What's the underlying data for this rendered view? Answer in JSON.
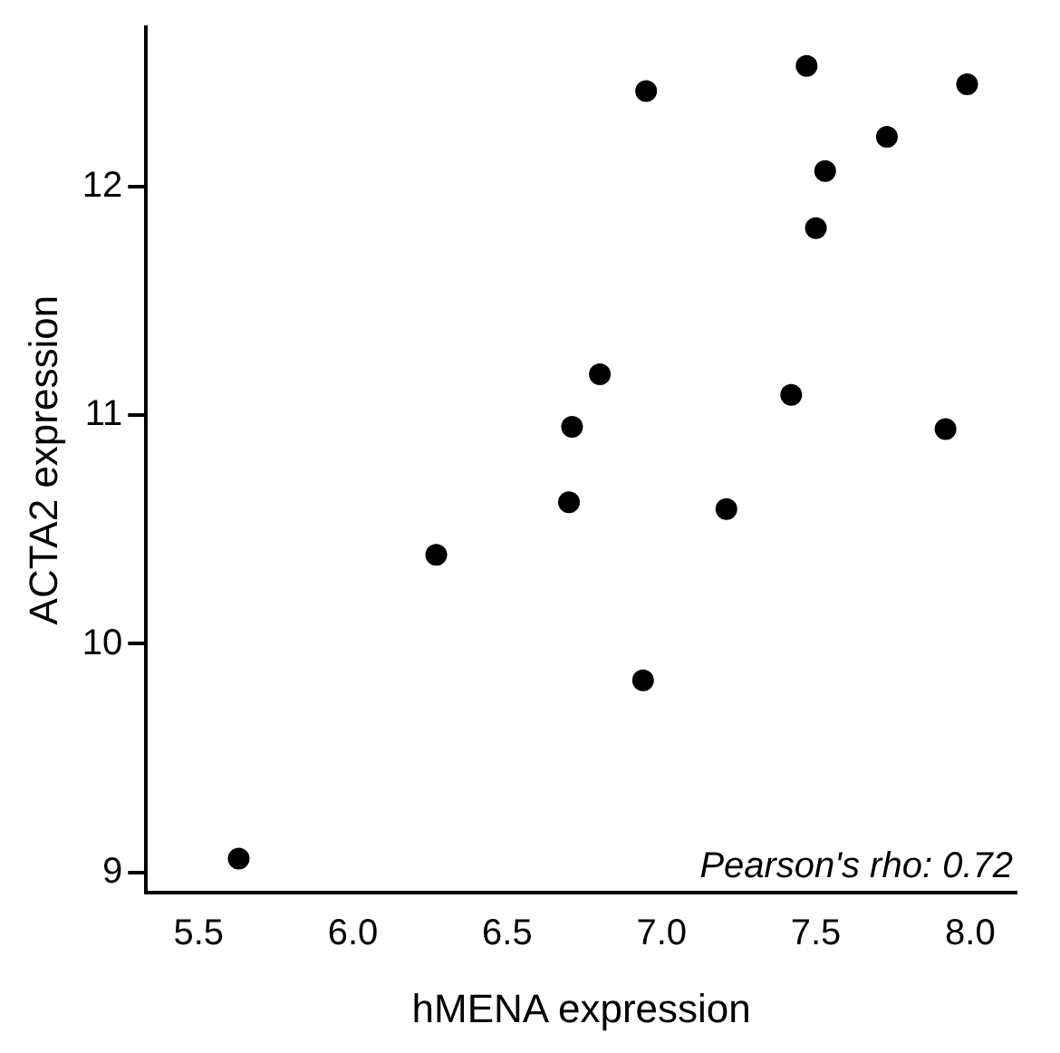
{
  "chart_data": {
    "type": "scatter",
    "xlabel": "hMENA expression",
    "ylabel": "ACTA2 expression",
    "annotations": [
      "Pearson's rho: 0.72"
    ],
    "x": [
      5.63,
      6.27,
      6.7,
      6.71,
      6.8,
      6.95,
      6.94,
      7.21,
      7.42,
      7.47,
      7.5,
      7.53,
      7.73,
      7.92,
      7.99
    ],
    "series": [
      {
        "color": "#000000",
        "values": [
          9.06,
          10.39,
          10.62,
          10.95,
          11.18,
          12.42,
          9.84,
          10.59,
          11.09,
          12.53,
          11.82,
          12.07,
          12.22,
          10.94,
          12.45
        ]
      }
    ],
    "xlim": [
      5.33,
      8.15
    ],
    "xticks": [
      {
        "value": 5.5,
        "label": "5.5"
      },
      {
        "value": 6,
        "label": "6.0"
      },
      {
        "value": 6.5,
        "label": "6.5"
      },
      {
        "value": 7,
        "label": "7.0"
      },
      {
        "value": 7.5,
        "label": "7.5"
      },
      {
        "value": 8,
        "label": "8.0"
      }
    ],
    "ylim": [
      8.91,
      12.7
    ],
    "yticks": [
      9,
      10,
      11,
      12
    ],
    "grid": false,
    "legend": false,
    "marker": "circle"
  }
}
